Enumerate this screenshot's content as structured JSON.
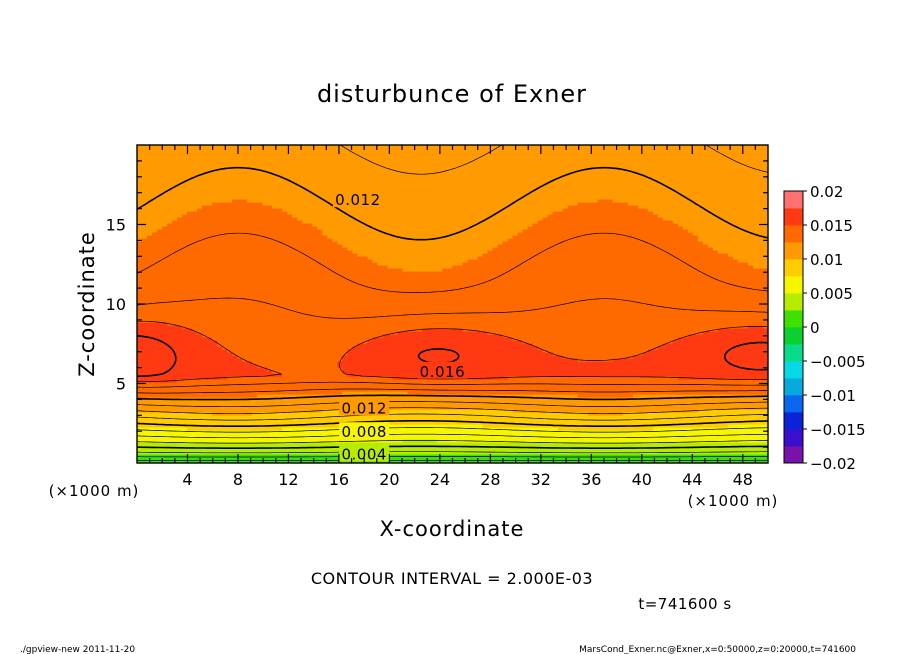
{
  "chart_data": {
    "type": "contour",
    "title": "disturbunce of Exner",
    "xlabel": "X-coordinate",
    "ylabel": "Z-coordinate",
    "x_unit_left": "(×1000 m)",
    "x_unit_right": "(×1000 m)",
    "xlim": [
      0,
      50
    ],
    "ylim": [
      0,
      20
    ],
    "x_ticks": [
      4,
      8,
      12,
      16,
      20,
      24,
      28,
      32,
      36,
      40,
      44,
      48
    ],
    "x_tick_labels": [
      "4",
      "8",
      "12",
      "16",
      "20",
      "24",
      "28",
      "32",
      "36",
      "40",
      "44",
      "48"
    ],
    "y_ticks": [
      5,
      10,
      15
    ],
    "y_tick_labels": [
      "5",
      "10",
      "15"
    ],
    "contour_interval_text": "CONTOUR INTERVAL = 2.000E-03",
    "contour_labels": [
      {
        "text": "0.012",
        "x": 17.5,
        "z": 16.6
      },
      {
        "text": "0.016",
        "x": 24.2,
        "z": 5.8
      },
      {
        "text": "0.012",
        "x": 18.0,
        "z": 3.5
      },
      {
        "text": "0.008",
        "x": 18.0,
        "z": 2.0
      },
      {
        "text": "0.004",
        "x": 18.0,
        "z": 0.6
      }
    ],
    "colorbar": {
      "min": -0.02,
      "max": 0.02,
      "step": 0.0025,
      "tick_labels": [
        "0.02",
        "0.015",
        "0.01",
        "0.005",
        "0",
        "−0.005",
        "−0.01",
        "−0.015",
        "−0.02"
      ],
      "tick_values": [
        0.02,
        0.015,
        0.01,
        0.005,
        0,
        -0.005,
        -0.01,
        -0.015,
        -0.02
      ],
      "colors": [
        "#7a12aa",
        "#3a10cc",
        "#0a22d8",
        "#0a66ee",
        "#08aadd",
        "#06d8e6",
        "#08dc88",
        "#0ad030",
        "#3ee000",
        "#b6ec00",
        "#f6f600",
        "#ffcc00",
        "#ff9a00",
        "#ff6a00",
        "#ff3a12",
        "#ff7070"
      ]
    },
    "time_text": "t=741600 s",
    "footer_left": "./gpview-new   2011-11-20",
    "footer_right": "MarsCond_Exner.nc@Exner,x=0:50000,z=0:20000,t=741600"
  }
}
